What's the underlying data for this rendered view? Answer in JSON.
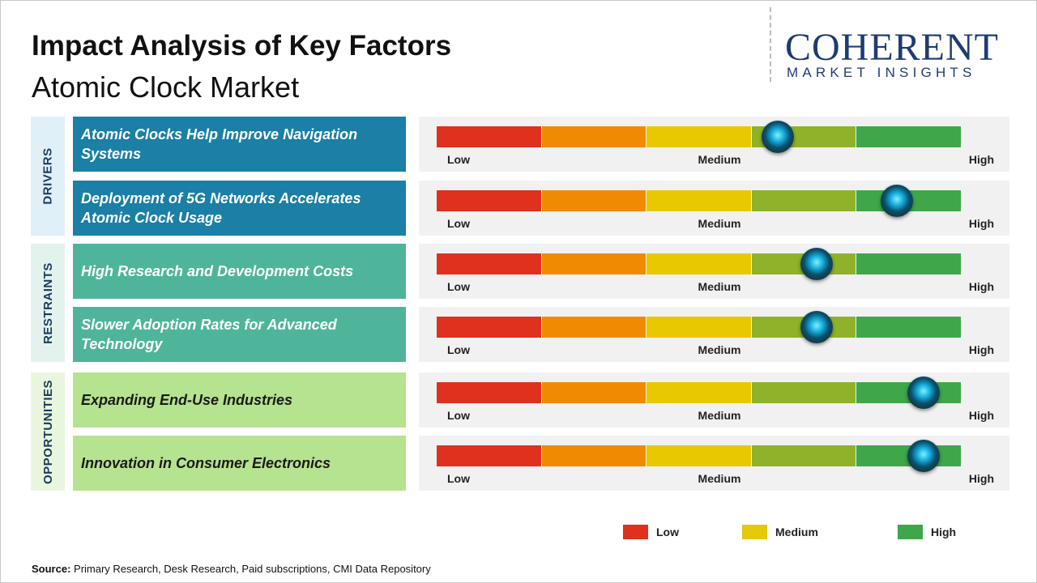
{
  "header": {
    "title": "Impact Analysis of Key Factors",
    "subtitle": "Atomic Clock Market"
  },
  "logo": {
    "name": "COHERENT",
    "tagline": "MARKET INSIGHTS"
  },
  "scale": {
    "range": [
      0,
      5
    ],
    "colors": [
      "#e0301e",
      "#f08a00",
      "#e8c800",
      "#8fb22a",
      "#3fa64a"
    ],
    "labels": [
      "Low",
      "Medium",
      "High"
    ]
  },
  "groups": [
    {
      "label": "DRIVERS",
      "color": "#dff0f8",
      "factor_color": "#1b7fa6",
      "text_color": "#ffffff",
      "factors": [
        {
          "label": "Atomic Clocks Help Improve Navigation Systems",
          "impact": 3.25
        },
        {
          "label": "Deployment of 5G Networks Accelerates Atomic Clock Usage",
          "impact": 4.38
        }
      ]
    },
    {
      "label": "RESTRAINTS",
      "color": "#e2f3ee",
      "factor_color": "#4fb59a",
      "text_color": "#ffffff",
      "factors": [
        {
          "label": "High Research and Development Costs",
          "impact": 3.62
        },
        {
          "label": "Slower Adoption Rates for Advanced Technology",
          "impact": 3.62
        }
      ]
    },
    {
      "label": "OPPORTUNITIES",
      "color": "#e8f6dd",
      "factor_color": "#b6e38f",
      "text_color": "#1a1a1a",
      "factors": [
        {
          "label": "Expanding End-Use Industries",
          "impact": 4.64
        },
        {
          "label": "Innovation in Consumer Electronics",
          "impact": 4.64
        }
      ]
    }
  ],
  "legend": [
    {
      "label": "Low",
      "color": "#e0301e"
    },
    {
      "label": "Medium",
      "color": "#e5c90c"
    },
    {
      "label": "High",
      "color": "#3fa64a"
    }
  ],
  "source": {
    "label": "Source:",
    "text": "Primary Research, Desk Research, Paid subscriptions, CMI Data Repository"
  }
}
